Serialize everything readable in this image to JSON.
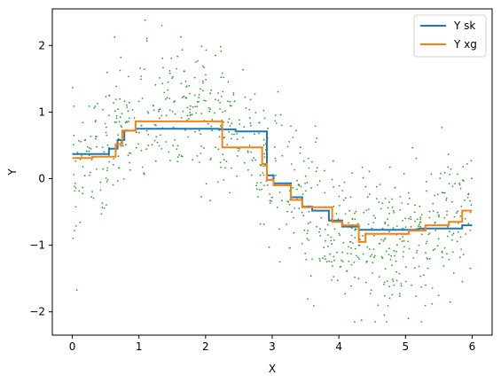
{
  "chart_data": {
    "type": "line",
    "title": "",
    "xlabel": "X",
    "ylabel": "Y",
    "xlim": [
      -0.3,
      6.3
    ],
    "ylim": [
      -2.35,
      2.55
    ],
    "xticks": [
      0,
      1,
      2,
      3,
      4,
      5,
      6
    ],
    "yticks": [
      -2,
      -1,
      0,
      1,
      2
    ],
    "xtick_labels": [
      "0",
      "1",
      "2",
      "3",
      "4",
      "5",
      "6"
    ],
    "ytick_labels": [
      "−2",
      "−1",
      "0",
      "1",
      "2"
    ],
    "grid": false,
    "legend_position": "top-right",
    "series": [
      {
        "name": "Y sk",
        "type": "step",
        "color": "#1f77b4",
        "points": [
          [
            0,
            0.37
          ],
          [
            0.55,
            0.37
          ],
          [
            0.55,
            0.45
          ],
          [
            0.68,
            0.45
          ],
          [
            0.68,
            0.58
          ],
          [
            0.78,
            0.58
          ],
          [
            0.78,
            0.72
          ],
          [
            0.95,
            0.72
          ],
          [
            0.95,
            0.75
          ],
          [
            2.2,
            0.75
          ],
          [
            2.2,
            0.74
          ],
          [
            2.45,
            0.74
          ],
          [
            2.45,
            0.71
          ],
          [
            2.92,
            0.71
          ],
          [
            2.92,
            0.05
          ],
          [
            3.02,
            0.05
          ],
          [
            3.02,
            -0.07
          ],
          [
            3.28,
            -0.07
          ],
          [
            3.28,
            -0.28
          ],
          [
            3.45,
            -0.28
          ],
          [
            3.45,
            -0.42
          ],
          [
            3.6,
            -0.42
          ],
          [
            3.6,
            -0.48
          ],
          [
            3.85,
            -0.48
          ],
          [
            3.85,
            -0.63
          ],
          [
            4.05,
            -0.63
          ],
          [
            4.05,
            -0.72
          ],
          [
            4.3,
            -0.72
          ],
          [
            4.3,
            -0.77
          ],
          [
            5.2,
            -0.77
          ],
          [
            5.2,
            -0.75
          ],
          [
            5.85,
            -0.75
          ],
          [
            5.85,
            -0.7
          ],
          [
            6,
            -0.7
          ]
        ]
      },
      {
        "name": "Y xg",
        "type": "step",
        "color": "#ff7f0e",
        "points": [
          [
            0,
            0.31
          ],
          [
            0.3,
            0.31
          ],
          [
            0.3,
            0.33
          ],
          [
            0.65,
            0.33
          ],
          [
            0.65,
            0.52
          ],
          [
            0.75,
            0.52
          ],
          [
            0.75,
            0.72
          ],
          [
            0.95,
            0.72
          ],
          [
            0.95,
            0.86
          ],
          [
            2.25,
            0.86
          ],
          [
            2.25,
            0.47
          ],
          [
            2.85,
            0.47
          ],
          [
            2.85,
            0.22
          ],
          [
            2.92,
            0.22
          ],
          [
            2.92,
            -0.02
          ],
          [
            3.02,
            -0.02
          ],
          [
            3.02,
            -0.1
          ],
          [
            3.28,
            -0.1
          ],
          [
            3.28,
            -0.32
          ],
          [
            3.45,
            -0.32
          ],
          [
            3.45,
            -0.43
          ],
          [
            3.9,
            -0.43
          ],
          [
            3.9,
            -0.65
          ],
          [
            4.05,
            -0.65
          ],
          [
            4.05,
            -0.7
          ],
          [
            4.3,
            -0.7
          ],
          [
            4.3,
            -0.95
          ],
          [
            4.4,
            -0.95
          ],
          [
            4.4,
            -0.83
          ],
          [
            5.05,
            -0.83
          ],
          [
            5.05,
            -0.78
          ],
          [
            5.3,
            -0.78
          ],
          [
            5.3,
            -0.7
          ],
          [
            5.65,
            -0.7
          ],
          [
            5.65,
            -0.65
          ],
          [
            5.85,
            -0.65
          ],
          [
            5.85,
            -0.48
          ],
          [
            6,
            -0.48
          ]
        ]
      }
    ],
    "scatter": {
      "color": "#2ca02c",
      "count": 900,
      "generator": "y = sin(x) + noise, x in [0, 6]"
    }
  }
}
